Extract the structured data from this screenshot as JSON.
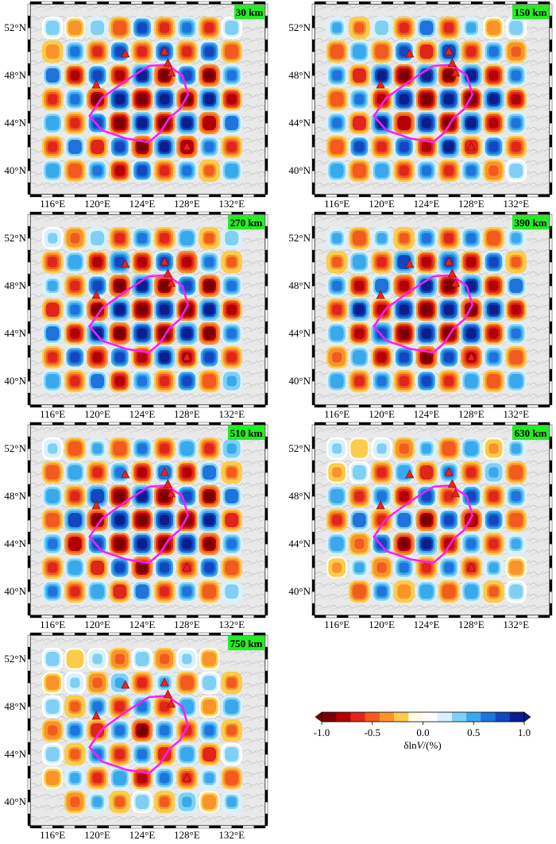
{
  "chart_data": {
    "type": "heatmap",
    "description_units": "checkerboard resolution test, velocity perturbation",
    "colorbar": {
      "title_prefix": "δln",
      "title_var": "V",
      "title_suffix": "/(%)",
      "min": -1.0,
      "max": 1.0,
      "ticks": [
        -1.0,
        -0.5,
        0.0,
        0.5,
        1.0
      ],
      "tick_labels": [
        "-1.0",
        "-0.5",
        "0.0",
        "0.5",
        "1.0"
      ],
      "colors": [
        "#7a0000",
        "#b30000",
        "#e0251b",
        "#f25a1e",
        "#f8942a",
        "#fbcc4a",
        "#fffbe6",
        "#ffffff",
        "#d9f1ff",
        "#7fd0f4",
        "#38a9ec",
        "#1e74dc",
        "#1247c0",
        "#0a1f8c"
      ]
    },
    "lon_range": [
      114,
      135
    ],
    "lat_range": [
      38,
      54
    ],
    "x_ticks": [
      116,
      120,
      124,
      128,
      132
    ],
    "x_tick_labels": [
      "116°E",
      "120°E",
      "124°E",
      "128°E",
      "132°E"
    ],
    "y_ticks": [
      40,
      44,
      48,
      52
    ],
    "y_tick_labels": [
      "40°N",
      "44°N",
      "48°N",
      "52°N"
    ],
    "checker_size_deg": 2,
    "amplitude_percent": 1.0,
    "panels": [
      {
        "depth_label": "30 km",
        "coverage": 1.0
      },
      {
        "depth_label": "150 km",
        "coverage": 1.0
      },
      {
        "depth_label": "270 km",
        "coverage": 1.0
      },
      {
        "depth_label": "390 km",
        "coverage": 1.0
      },
      {
        "depth_label": "510 km",
        "coverage": 1.0
      },
      {
        "depth_label": "630 km",
        "coverage": 0.8
      },
      {
        "depth_label": "750 km",
        "coverage": 0.7
      }
    ],
    "volcanoes_lonlat": [
      [
        122.5,
        49.8
      ],
      [
        126.0,
        50.0
      ],
      [
        126.3,
        49.0
      ],
      [
        126.6,
        48.2
      ],
      [
        119.9,
        47.2
      ],
      [
        128.0,
        42.0
      ]
    ],
    "outline_lonlat": [
      [
        124.6,
        48.8
      ],
      [
        126.2,
        48.9
      ],
      [
        127.6,
        48.0
      ],
      [
        128.1,
        46.4
      ],
      [
        127.4,
        45.2
      ],
      [
        126.4,
        44.4
      ],
      [
        125.6,
        43.2
      ],
      [
        124.6,
        42.4
      ],
      [
        122.6,
        42.7
      ],
      [
        120.4,
        43.4
      ],
      [
        119.3,
        44.6
      ],
      [
        120.4,
        46.1
      ],
      [
        122.6,
        47.6
      ],
      [
        124.6,
        48.8
      ]
    ],
    "colors": {
      "outline": "#ff1aff",
      "volcano": "#e8231d",
      "depth_badge": "#22ee22"
    }
  }
}
